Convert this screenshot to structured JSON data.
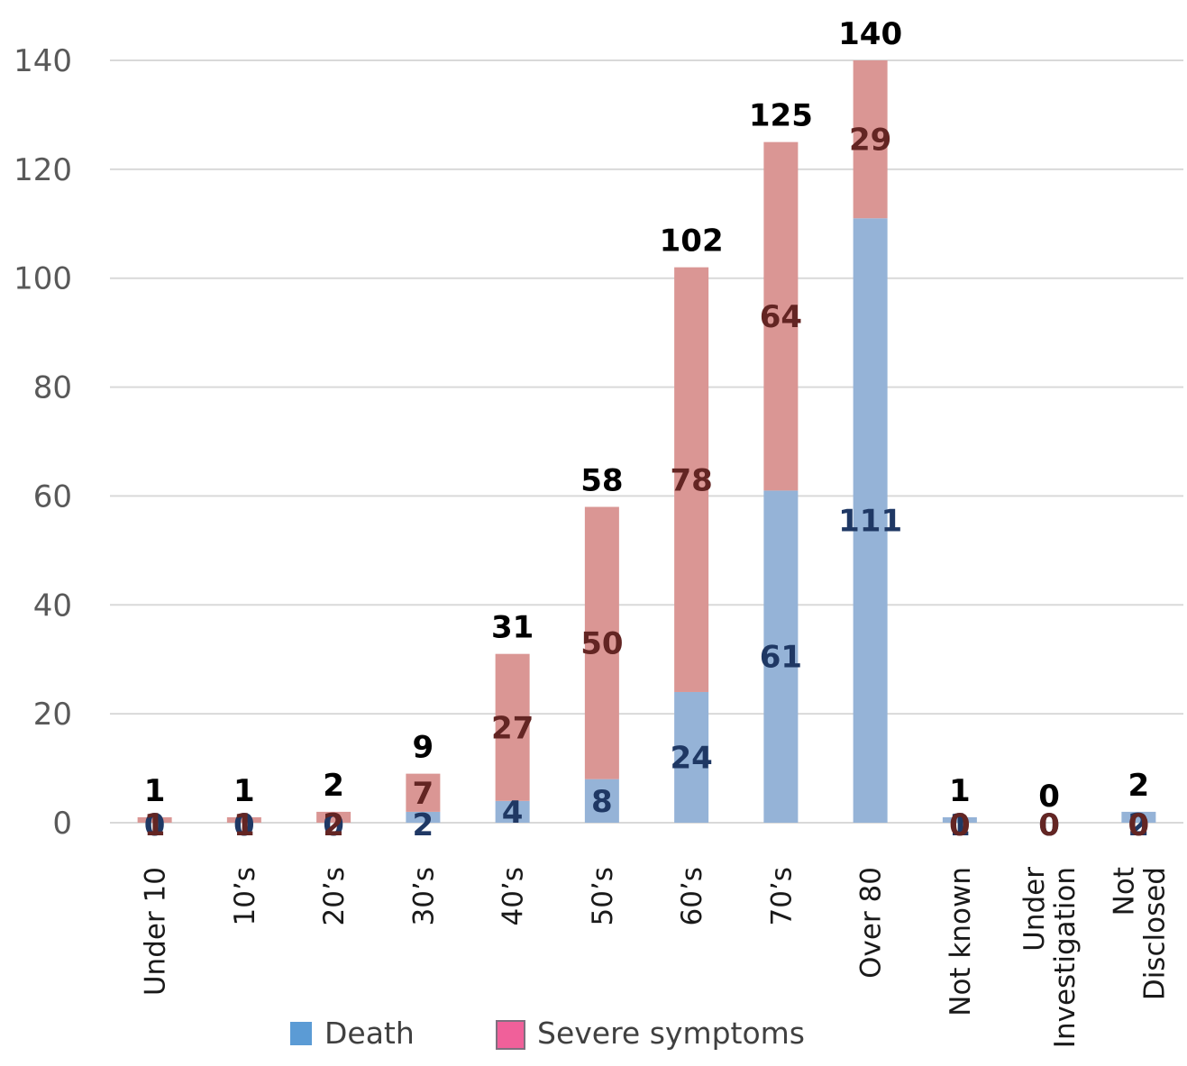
{
  "chart_data": {
    "type": "bar",
    "stacked": true,
    "title": "",
    "xlabel": "",
    "ylabel": "",
    "ylim": [
      0,
      140
    ],
    "yticks": [
      0,
      20,
      40,
      60,
      80,
      100,
      120,
      140
    ],
    "grid": true,
    "legend_position": "bottom",
    "categories": [
      [
        "Under 10"
      ],
      [
        "10’s"
      ],
      [
        "20’s"
      ],
      [
        "30’s"
      ],
      [
        "40’s"
      ],
      [
        "50’s"
      ],
      [
        "60’s"
      ],
      [
        "70’s"
      ],
      [
        "Over 80"
      ],
      [
        "Not known"
      ],
      [
        "Under",
        "Investigation"
      ],
      [
        "Not",
        "Disclosed"
      ]
    ],
    "series": [
      {
        "name": "Death",
        "values": [
          0,
          0,
          0,
          2,
          4,
          8,
          24,
          61,
          111,
          1,
          0,
          2
        ],
        "color": "#95b3d7",
        "label_color": "#1f3864",
        "legend_color": "#5b9bd5"
      },
      {
        "name": "Severe symptoms",
        "values": [
          1,
          1,
          2,
          7,
          27,
          50,
          78,
          64,
          29,
          0,
          0,
          0
        ],
        "color": "#da9694",
        "label_color": "#632523",
        "legend_color": "#f0609a"
      }
    ],
    "totals": [
      1,
      1,
      2,
      9,
      31,
      58,
      102,
      125,
      140,
      1,
      0,
      2
    ]
  }
}
